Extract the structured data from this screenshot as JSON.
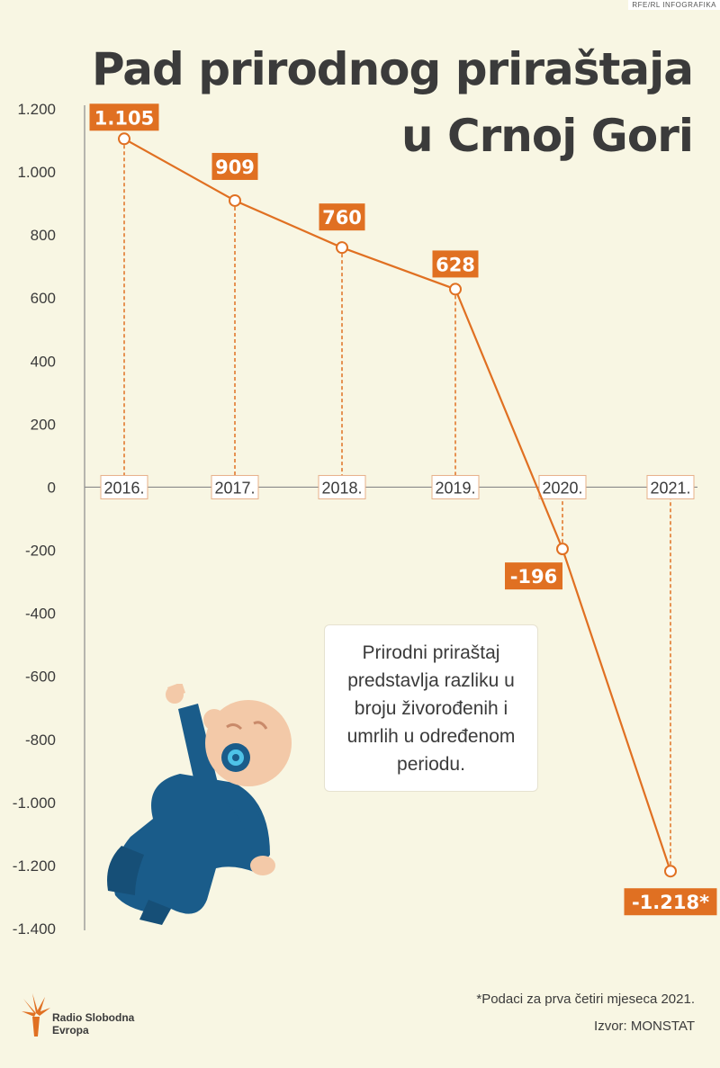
{
  "title_line1": "Pad prirodnog priraštaja",
  "title_line2": "u Crnoj Gori",
  "credit": "RFE/RL INFOGRAFIKA",
  "info_text": "Prirodni priraštaj predstavlja razliku u broju živorođenih i umrlih u određenom periodu.",
  "footnote": "*Podaci za prva četiri mjeseca 2021.",
  "source": "Izvor: MONSTAT",
  "logo": {
    "line1": "Radio Slobodna",
    "line2": "Evropa"
  },
  "colors": {
    "accent": "#e07022",
    "background": "#f8f6e3",
    "text": "#3b3b3b",
    "axis": "#8a8a8a"
  },
  "chart_data": {
    "type": "line",
    "x": [
      "2016.",
      "2017.",
      "2018.",
      "2019.",
      "2020.",
      "2021."
    ],
    "values": [
      1105,
      909,
      760,
      628,
      -196,
      -1218
    ],
    "data_labels": [
      "1.105",
      "909",
      "760",
      "628",
      "-196",
      "-1.218*"
    ],
    "ylim": [
      -1400,
      1200
    ],
    "yticks": [
      1200,
      1000,
      800,
      600,
      400,
      200,
      0,
      -200,
      -400,
      -600,
      -800,
      -1000,
      -1200,
      -1400
    ],
    "ytick_labels": [
      "1.200",
      "1.000",
      "800",
      "600",
      "400",
      "200",
      "0",
      "-200",
      "-400",
      "-600",
      "-800",
      "-1.000",
      "-1.200",
      "-1.400"
    ],
    "grid": false,
    "color": "#e07022"
  }
}
